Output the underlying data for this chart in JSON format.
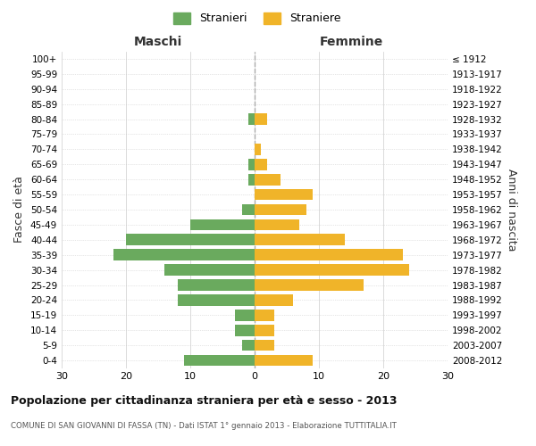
{
  "age_groups": [
    "0-4",
    "5-9",
    "10-14",
    "15-19",
    "20-24",
    "25-29",
    "30-34",
    "35-39",
    "40-44",
    "45-49",
    "50-54",
    "55-59",
    "60-64",
    "65-69",
    "70-74",
    "75-79",
    "80-84",
    "85-89",
    "90-94",
    "95-99",
    "100+"
  ],
  "birth_years": [
    "2008-2012",
    "2003-2007",
    "1998-2002",
    "1993-1997",
    "1988-1992",
    "1983-1987",
    "1978-1982",
    "1973-1977",
    "1968-1972",
    "1963-1967",
    "1958-1962",
    "1953-1957",
    "1948-1952",
    "1943-1947",
    "1938-1942",
    "1933-1937",
    "1928-1932",
    "1923-1927",
    "1918-1922",
    "1913-1917",
    "≤ 1912"
  ],
  "males": [
    11,
    2,
    3,
    3,
    12,
    12,
    14,
    22,
    20,
    10,
    2,
    0,
    1,
    1,
    0,
    0,
    1,
    0,
    0,
    0,
    0
  ],
  "females": [
    9,
    3,
    3,
    3,
    6,
    17,
    24,
    23,
    14,
    7,
    8,
    9,
    4,
    2,
    1,
    0,
    2,
    0,
    0,
    0,
    0
  ],
  "male_color": "#6aaa5e",
  "female_color": "#f0b429",
  "background_color": "#ffffff",
  "grid_color": "#cccccc",
  "title": "Popolazione per cittadinanza straniera per età e sesso - 2013",
  "subtitle": "COMUNE DI SAN GIOVANNI DI FASSA (TN) - Dati ISTAT 1° gennaio 2013 - Elaborazione TUTTITALIA.IT",
  "left_label": "Maschi",
  "right_label": "Femmine",
  "ylabel": "Fasce di età",
  "right_ylabel": "Anni di nascita",
  "legend_male": "Stranieri",
  "legend_female": "Straniere",
  "xlim": 30,
  "bar_height": 0.75
}
